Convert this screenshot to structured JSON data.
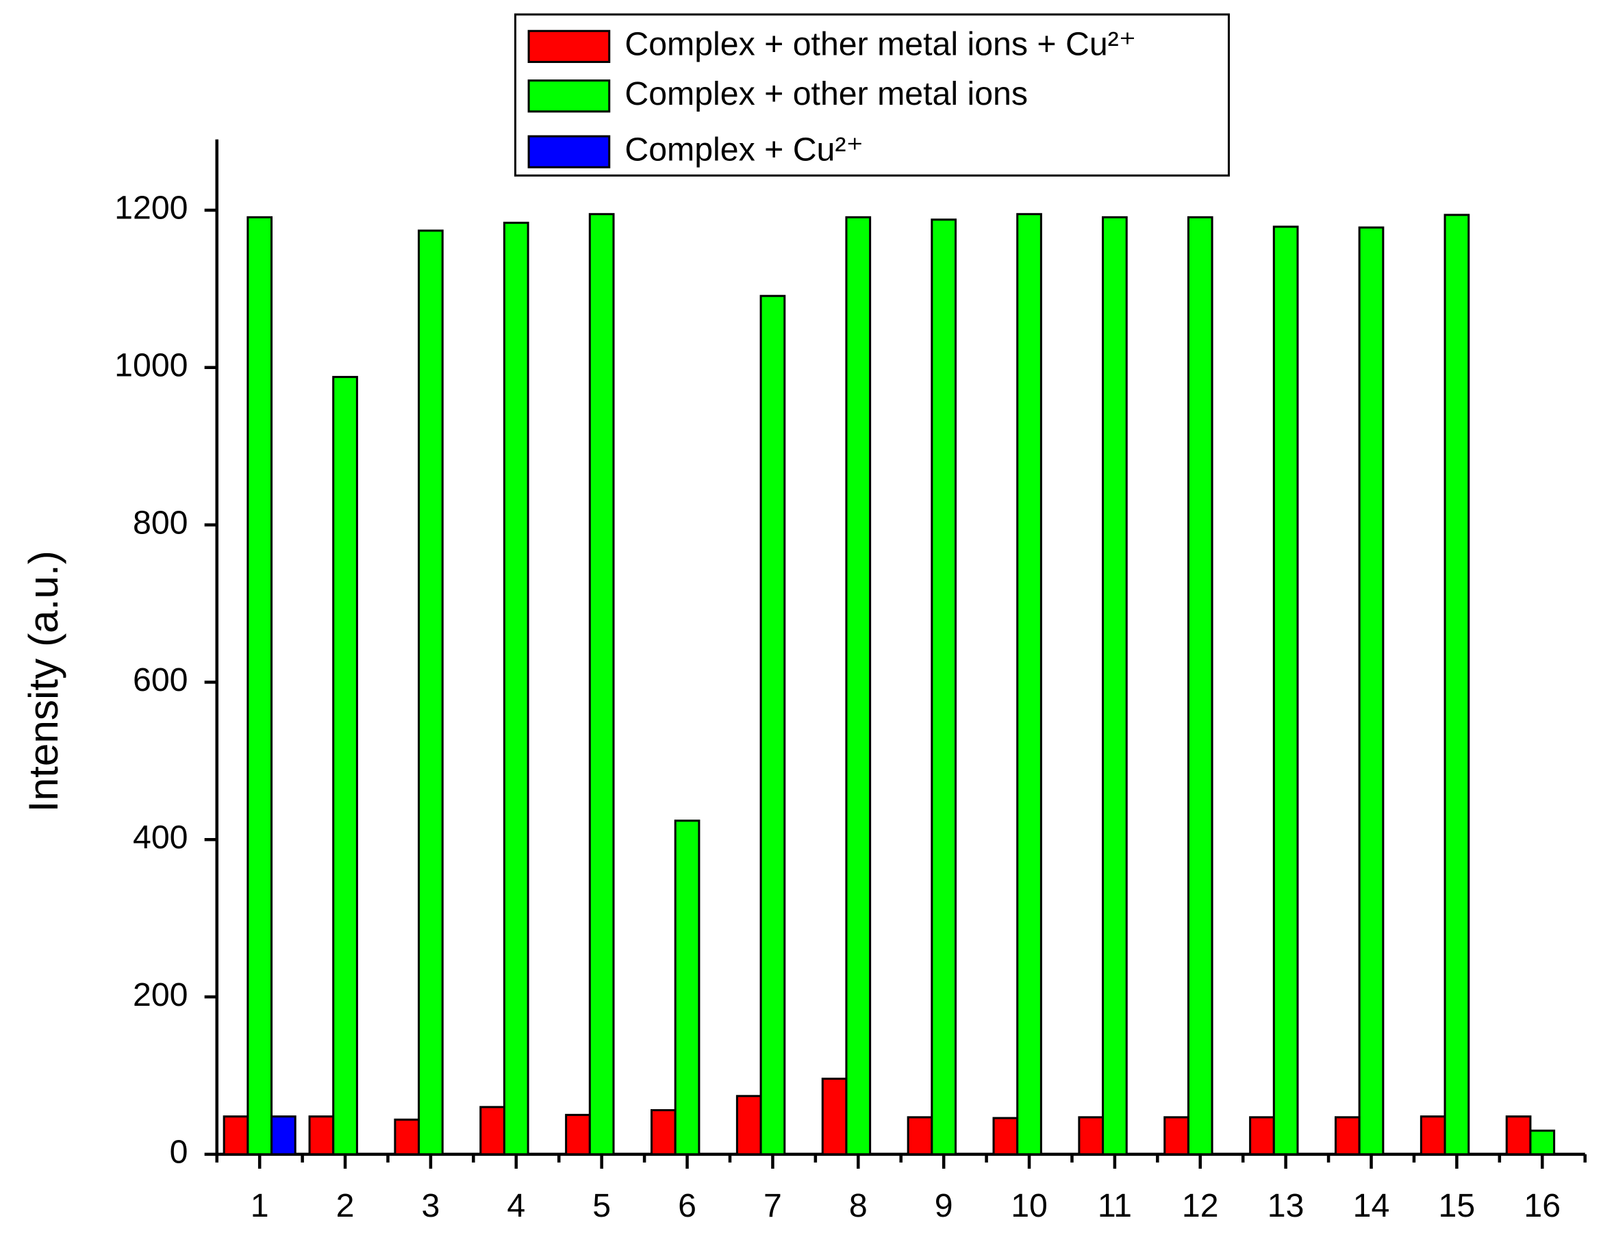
{
  "chart_data": {
    "type": "bar",
    "y_label": "Intensity (a.u.)",
    "categories": [
      "1",
      "2",
      "3",
      "4",
      "5",
      "6",
      "7",
      "8",
      "9",
      "10",
      "11",
      "12",
      "13",
      "14",
      "15",
      "16"
    ],
    "series": [
      {
        "name": "Complex + other metal ions + Cu²⁺",
        "color": "#ff0000",
        "values": [
          48,
          48,
          44,
          60,
          50,
          56,
          74,
          96,
          47,
          46,
          47,
          47,
          47,
          47,
          48,
          48
        ]
      },
      {
        "name": "Complex + other metal ions",
        "color": "#00ff00",
        "values": [
          1191,
          988,
          1174,
          1184,
          1195,
          424,
          1091,
          1191,
          1188,
          1195,
          1191,
          1191,
          1179,
          1178,
          1194,
          30
        ]
      },
      {
        "name": "Complex +  Cu²⁺",
        "color": "#0000ff",
        "values": [
          48,
          null,
          null,
          null,
          null,
          null,
          null,
          null,
          null,
          null,
          null,
          null,
          null,
          null,
          null,
          null
        ]
      }
    ],
    "ylim": [
      0,
      1290
    ],
    "yticks": [
      0,
      200,
      400,
      600,
      800,
      1000,
      1200
    ],
    "legend": "top"
  }
}
